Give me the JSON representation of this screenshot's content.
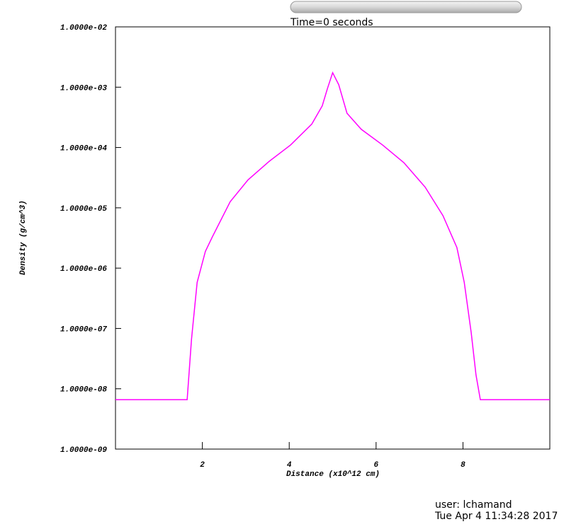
{
  "chart_data": {
    "type": "line",
    "title": "Time=0 seconds",
    "x_label": "Distance (x10^12 cm)",
    "y_label": "Density (g/cm^3)",
    "annotations": [
      "user: lchamand",
      "Tue Apr 4 11:34:28 2017"
    ],
    "log_y": true,
    "x": [
      0,
      1.65,
      1.75,
      1.88,
      2.07,
      2.23,
      2.64,
      3.05,
      3.54,
      4.03,
      4.52,
      4.76,
      4.88,
      5.0,
      5.14,
      5.33,
      5.66,
      6.15,
      6.64,
      7.13,
      7.54,
      7.86,
      8.03,
      8.19,
      8.3,
      8.4,
      10
    ],
    "series": [
      {
        "name": "Density",
        "color": "#ff00ff",
        "values": [
          6.6e-09,
          6.6e-09,
          6.6e-08,
          5.8e-07,
          1.9e-06,
          3.3e-06,
          1.26e-05,
          2.9e-05,
          5.9e-05,
          0.00011,
          0.000245,
          0.00049,
          0.00095,
          0.00174,
          0.0011,
          0.00037,
          0.0002,
          0.00011,
          5.6e-05,
          2.2e-05,
          7.4e-06,
          2.2e-06,
          5.8e-07,
          8.5e-08,
          1.7e-08,
          6.6e-09,
          6.6e-09
        ]
      }
    ],
    "xlim": [
      0,
      10
    ],
    "xticks": [
      2,
      4,
      6,
      8
    ],
    "ylim": [
      1e-09,
      0.01
    ],
    "yticks": [
      {
        "value": 1e-09,
        "label": "1.0000e-09"
      },
      {
        "value": 1e-08,
        "label": "1.0000e-08"
      },
      {
        "value": 1e-07,
        "label": "1.0000e-07"
      },
      {
        "value": 1e-06,
        "label": "1.0000e-06"
      },
      {
        "value": 1e-05,
        "label": "1.0000e-05"
      },
      {
        "value": 0.0001,
        "label": "1.0000e-04"
      },
      {
        "value": 0.001,
        "label": "1.0000e-03"
      },
      {
        "value": 0.01,
        "label": "1.0000e-02"
      }
    ]
  }
}
